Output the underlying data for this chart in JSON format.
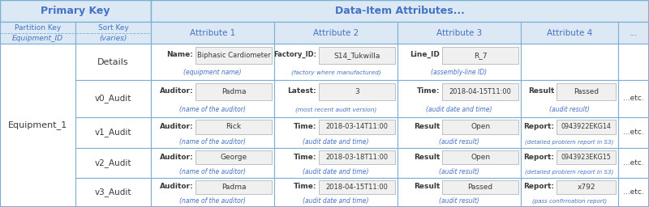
{
  "bg_color": "#ffffff",
  "header_bg": "#dce9f5",
  "cell_bg": "#ffffff",
  "border_color": "#7ab0d4",
  "inner_box_bg": "#f0f0f0",
  "blue_text": "#4472c4",
  "dark_text": "#3a3a3a",
  "rows": [
    {
      "version": "Details",
      "attr1_label": "Name:",
      "attr1_val": "Biphasic Cardiometer",
      "attr1_sub": "(equipment name)",
      "attr2_label": "Factory_ID:",
      "attr2_val": "S14_Tukwilla",
      "attr2_sub": "(factory where manufactured)",
      "attr3_label": "Line_ID",
      "attr3_val": "R_7",
      "attr3_sub": "(assembly-line ID)",
      "attr4_label": "",
      "attr4_val": "",
      "attr4_sub": "",
      "etc": ""
    },
    {
      "version": "v0_Audit",
      "attr1_label": "Auditor:",
      "attr1_val": "Padma",
      "attr1_sub": "(name of the auditor)",
      "attr2_label": "Latest:",
      "attr2_val": "3",
      "attr2_sub": "(most recent audit version)",
      "attr3_label": "Time:",
      "attr3_val": "2018-04-15T11:00",
      "attr3_sub": "(audit date and time)",
      "attr4_label": "Result",
      "attr4_val": "Passed",
      "attr4_sub": "(audit result)",
      "etc": "...etc."
    },
    {
      "version": "v1_Audit",
      "attr1_label": "Auditor:",
      "attr1_val": "Rick",
      "attr1_sub": "(name of the auditor)",
      "attr2_label": "Time:",
      "attr2_val": "2018-03-14T11:00",
      "attr2_sub": "(audit date and time)",
      "attr3_label": "Result",
      "attr3_val": "Open",
      "attr3_sub": "(audit result)",
      "attr4_label": "Report:",
      "attr4_val": "0943922EKG14",
      "attr4_sub": "(detailed problem report in S3)",
      "etc": "...etc."
    },
    {
      "version": "v2_Audit",
      "attr1_label": "Auditor:",
      "attr1_val": "George",
      "attr1_sub": "(name of the auditor)",
      "attr2_label": "Time:",
      "attr2_val": "2018-03-18T11:00",
      "attr2_sub": "(audit date and time)",
      "attr3_label": "Result",
      "attr3_val": "Open",
      "attr3_sub": "(audit result)",
      "attr4_label": "Report:",
      "attr4_val": "0943923EKG15",
      "attr4_sub": "(detailed problem report in S3)",
      "etc": "...etc."
    },
    {
      "version": "v3_Audit",
      "attr1_label": "Auditor:",
      "attr1_val": "Padma",
      "attr1_sub": "(name of the auditor)",
      "attr2_label": "Time:",
      "attr2_val": "2018-04-15T11:00",
      "attr2_sub": "(audit date and time)",
      "attr3_label": "Result",
      "attr3_val": "Passed",
      "attr3_sub": "(audit result)",
      "attr4_label": "Report:",
      "attr4_val": "x792",
      "attr4_sub": "(pass confirmation report)",
      "etc": "...etc."
    }
  ]
}
